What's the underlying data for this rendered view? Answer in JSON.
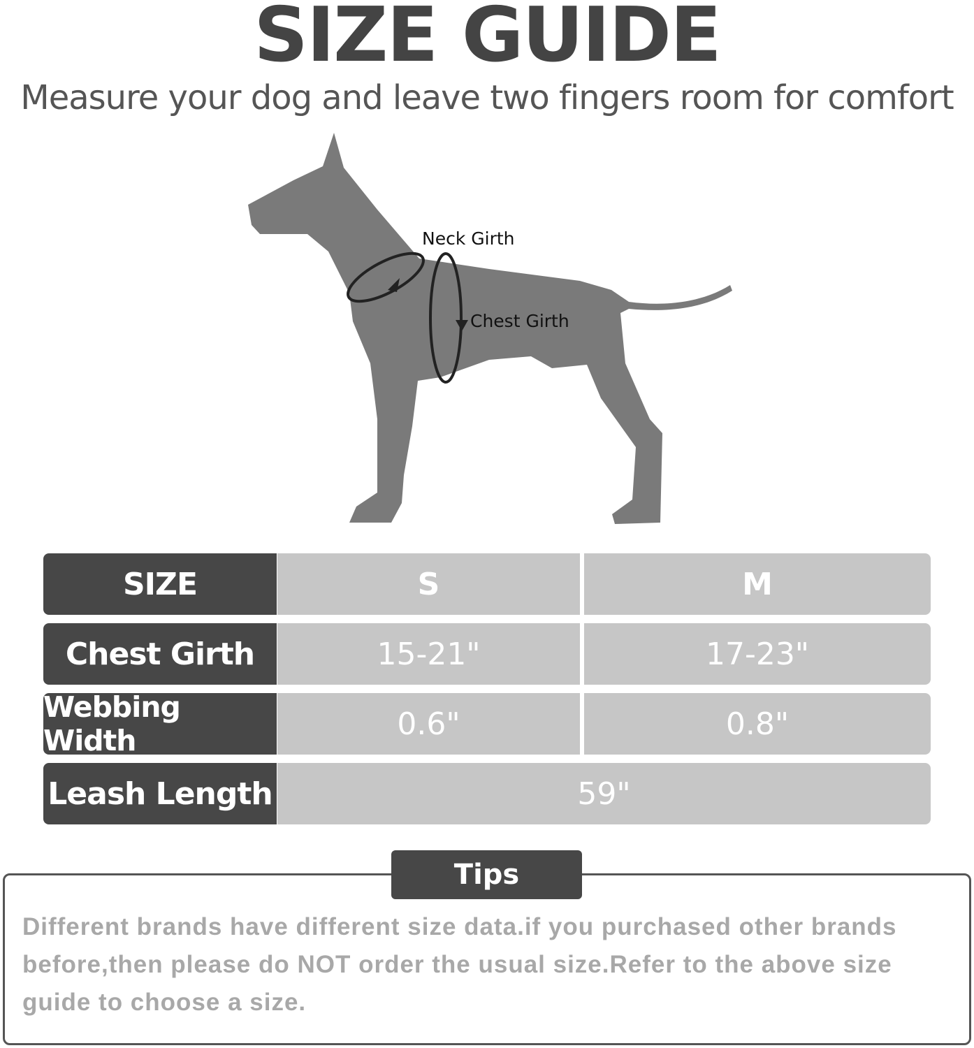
{
  "title": "SIZE GUIDE",
  "subtitle": "Measure your dog and leave two fingers room for comfort",
  "diagram": {
    "neck_label": "Neck Girth",
    "chest_label": "Chest Girth"
  },
  "table": {
    "header": {
      "label": "SIZE",
      "s": "S",
      "m": "M"
    },
    "rows": [
      {
        "label": "Chest Girth",
        "s": "15-21\"",
        "m": "17-23\""
      },
      {
        "label": "Webbing Width",
        "s": "0.6\"",
        "m": "0.8\""
      },
      {
        "label": "Leash Length",
        "all": "59\""
      }
    ]
  },
  "tips": {
    "label": "Tips",
    "text": "Different brands have different size data.if you purchased other brands before,then please do NOT order the usual size.Refer to the above size guide to choose a size."
  },
  "colors": {
    "dark": "#474747",
    "light": "#c6c6c6",
    "silhouette": "#7a7a7a"
  }
}
